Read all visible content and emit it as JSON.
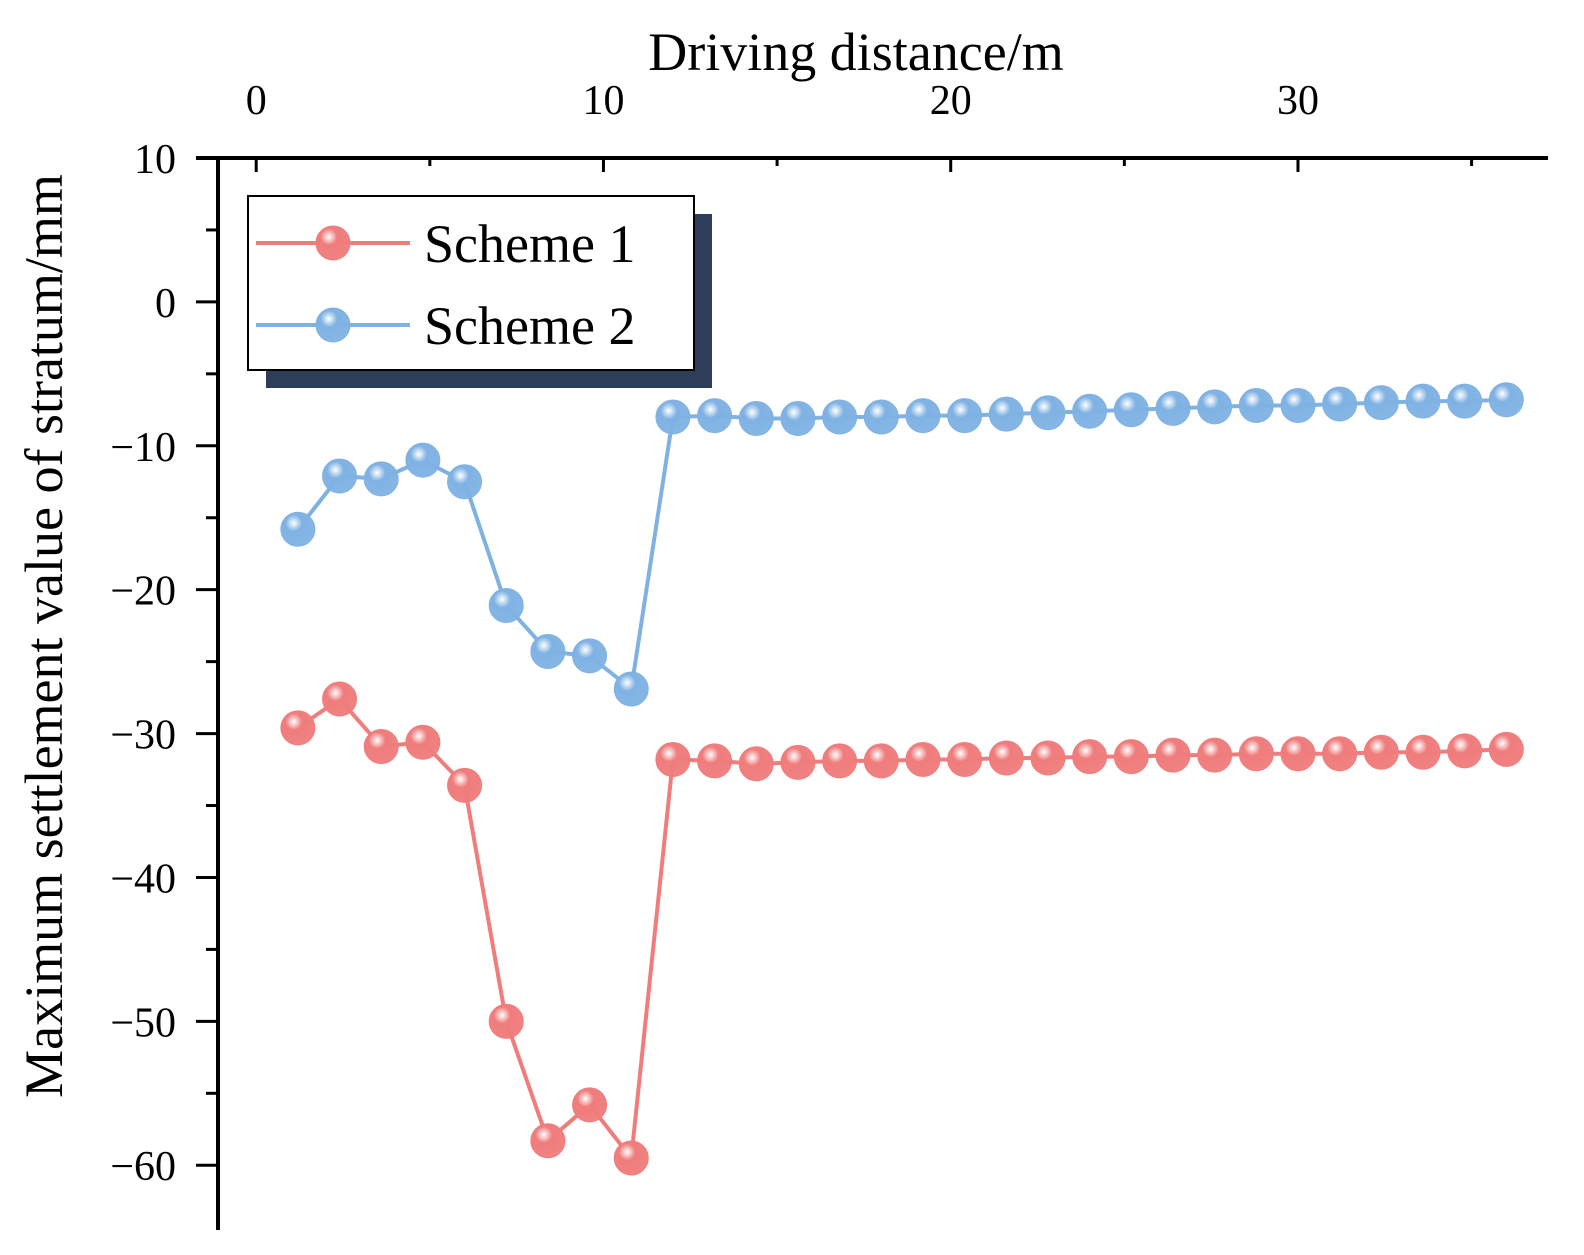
{
  "colors": {
    "scheme1": "#f07c7c",
    "scheme2": "#7fb2e3",
    "legend_shadow": "#2e3e58"
  },
  "chart_data": {
    "type": "line",
    "title": "",
    "xlabel": "Driving distance/m",
    "ylabel": "Maximum settlement value of stratum/mm",
    "x_axis_position": "top",
    "xlim": [
      -1.1,
      37.2
    ],
    "ylim": [
      -64.5,
      10
    ],
    "xticks": [
      0,
      10,
      20,
      30
    ],
    "yticks": [
      10,
      0,
      -10,
      -20,
      -30,
      -40,
      -50,
      -60
    ],
    "legend_position": "top-left",
    "series": [
      {
        "name": "Scheme 1",
        "color": "#f07c7c",
        "x": [
          1.2,
          2.4,
          3.6,
          4.8,
          6.0,
          7.2,
          8.4,
          9.6,
          10.8,
          12.0,
          13.2,
          14.4,
          15.6,
          16.8,
          18.0,
          19.2,
          20.4,
          21.6,
          22.8,
          24.0,
          25.2,
          26.4,
          27.6,
          28.8,
          30.0,
          31.2,
          32.4,
          33.6,
          34.8,
          36.0
        ],
        "y": [
          -29.6,
          -27.6,
          -30.9,
          -30.6,
          -33.6,
          -50.0,
          -58.3,
          -55.8,
          -59.5,
          -31.8,
          -31.9,
          -32.1,
          -32.0,
          -31.9,
          -31.9,
          -31.8,
          -31.8,
          -31.7,
          -31.7,
          -31.6,
          -31.6,
          -31.5,
          -31.5,
          -31.4,
          -31.4,
          -31.4,
          -31.3,
          -31.3,
          -31.2,
          -31.1
        ]
      },
      {
        "name": "Scheme 2",
        "color": "#7fb2e3",
        "x": [
          1.2,
          2.4,
          3.6,
          4.8,
          6.0,
          7.2,
          8.4,
          9.6,
          10.8,
          12.0,
          13.2,
          14.4,
          15.6,
          16.8,
          18.0,
          19.2,
          20.4,
          21.6,
          22.8,
          24.0,
          25.2,
          26.4,
          27.6,
          28.8,
          30.0,
          31.2,
          32.4,
          33.6,
          34.8,
          36.0
        ],
        "y": [
          -15.8,
          -12.1,
          -12.3,
          -11.0,
          -12.5,
          -21.1,
          -24.3,
          -24.6,
          -26.9,
          -8.0,
          -7.9,
          -8.1,
          -8.1,
          -8.0,
          -8.0,
          -7.9,
          -7.9,
          -7.8,
          -7.7,
          -7.6,
          -7.5,
          -7.4,
          -7.3,
          -7.2,
          -7.2,
          -7.1,
          -7.0,
          -6.9,
          -6.9,
          -6.8
        ]
      }
    ]
  }
}
